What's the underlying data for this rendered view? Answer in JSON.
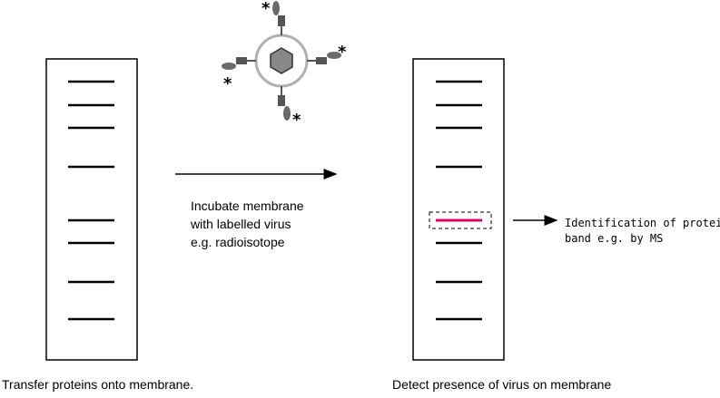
{
  "left_membrane": {
    "caption": "Transfer proteins onto membrane."
  },
  "process": {
    "lines": [
      "Incubate membrane",
      "with labelled virus",
      "e.g. radioisotope"
    ]
  },
  "virus": {
    "label_mark": "*",
    "colors": {
      "ring": "#b0b0b0",
      "capsid": "#888888",
      "ligand": "#6a6a6a",
      "receptor": "#555555"
    }
  },
  "right_membrane": {
    "caption": "Detect presence of virus on membrane",
    "highlight_color": "#e0006e"
  },
  "identification": {
    "lines": [
      "Identification of protein",
      "band e.g. by MS"
    ]
  }
}
